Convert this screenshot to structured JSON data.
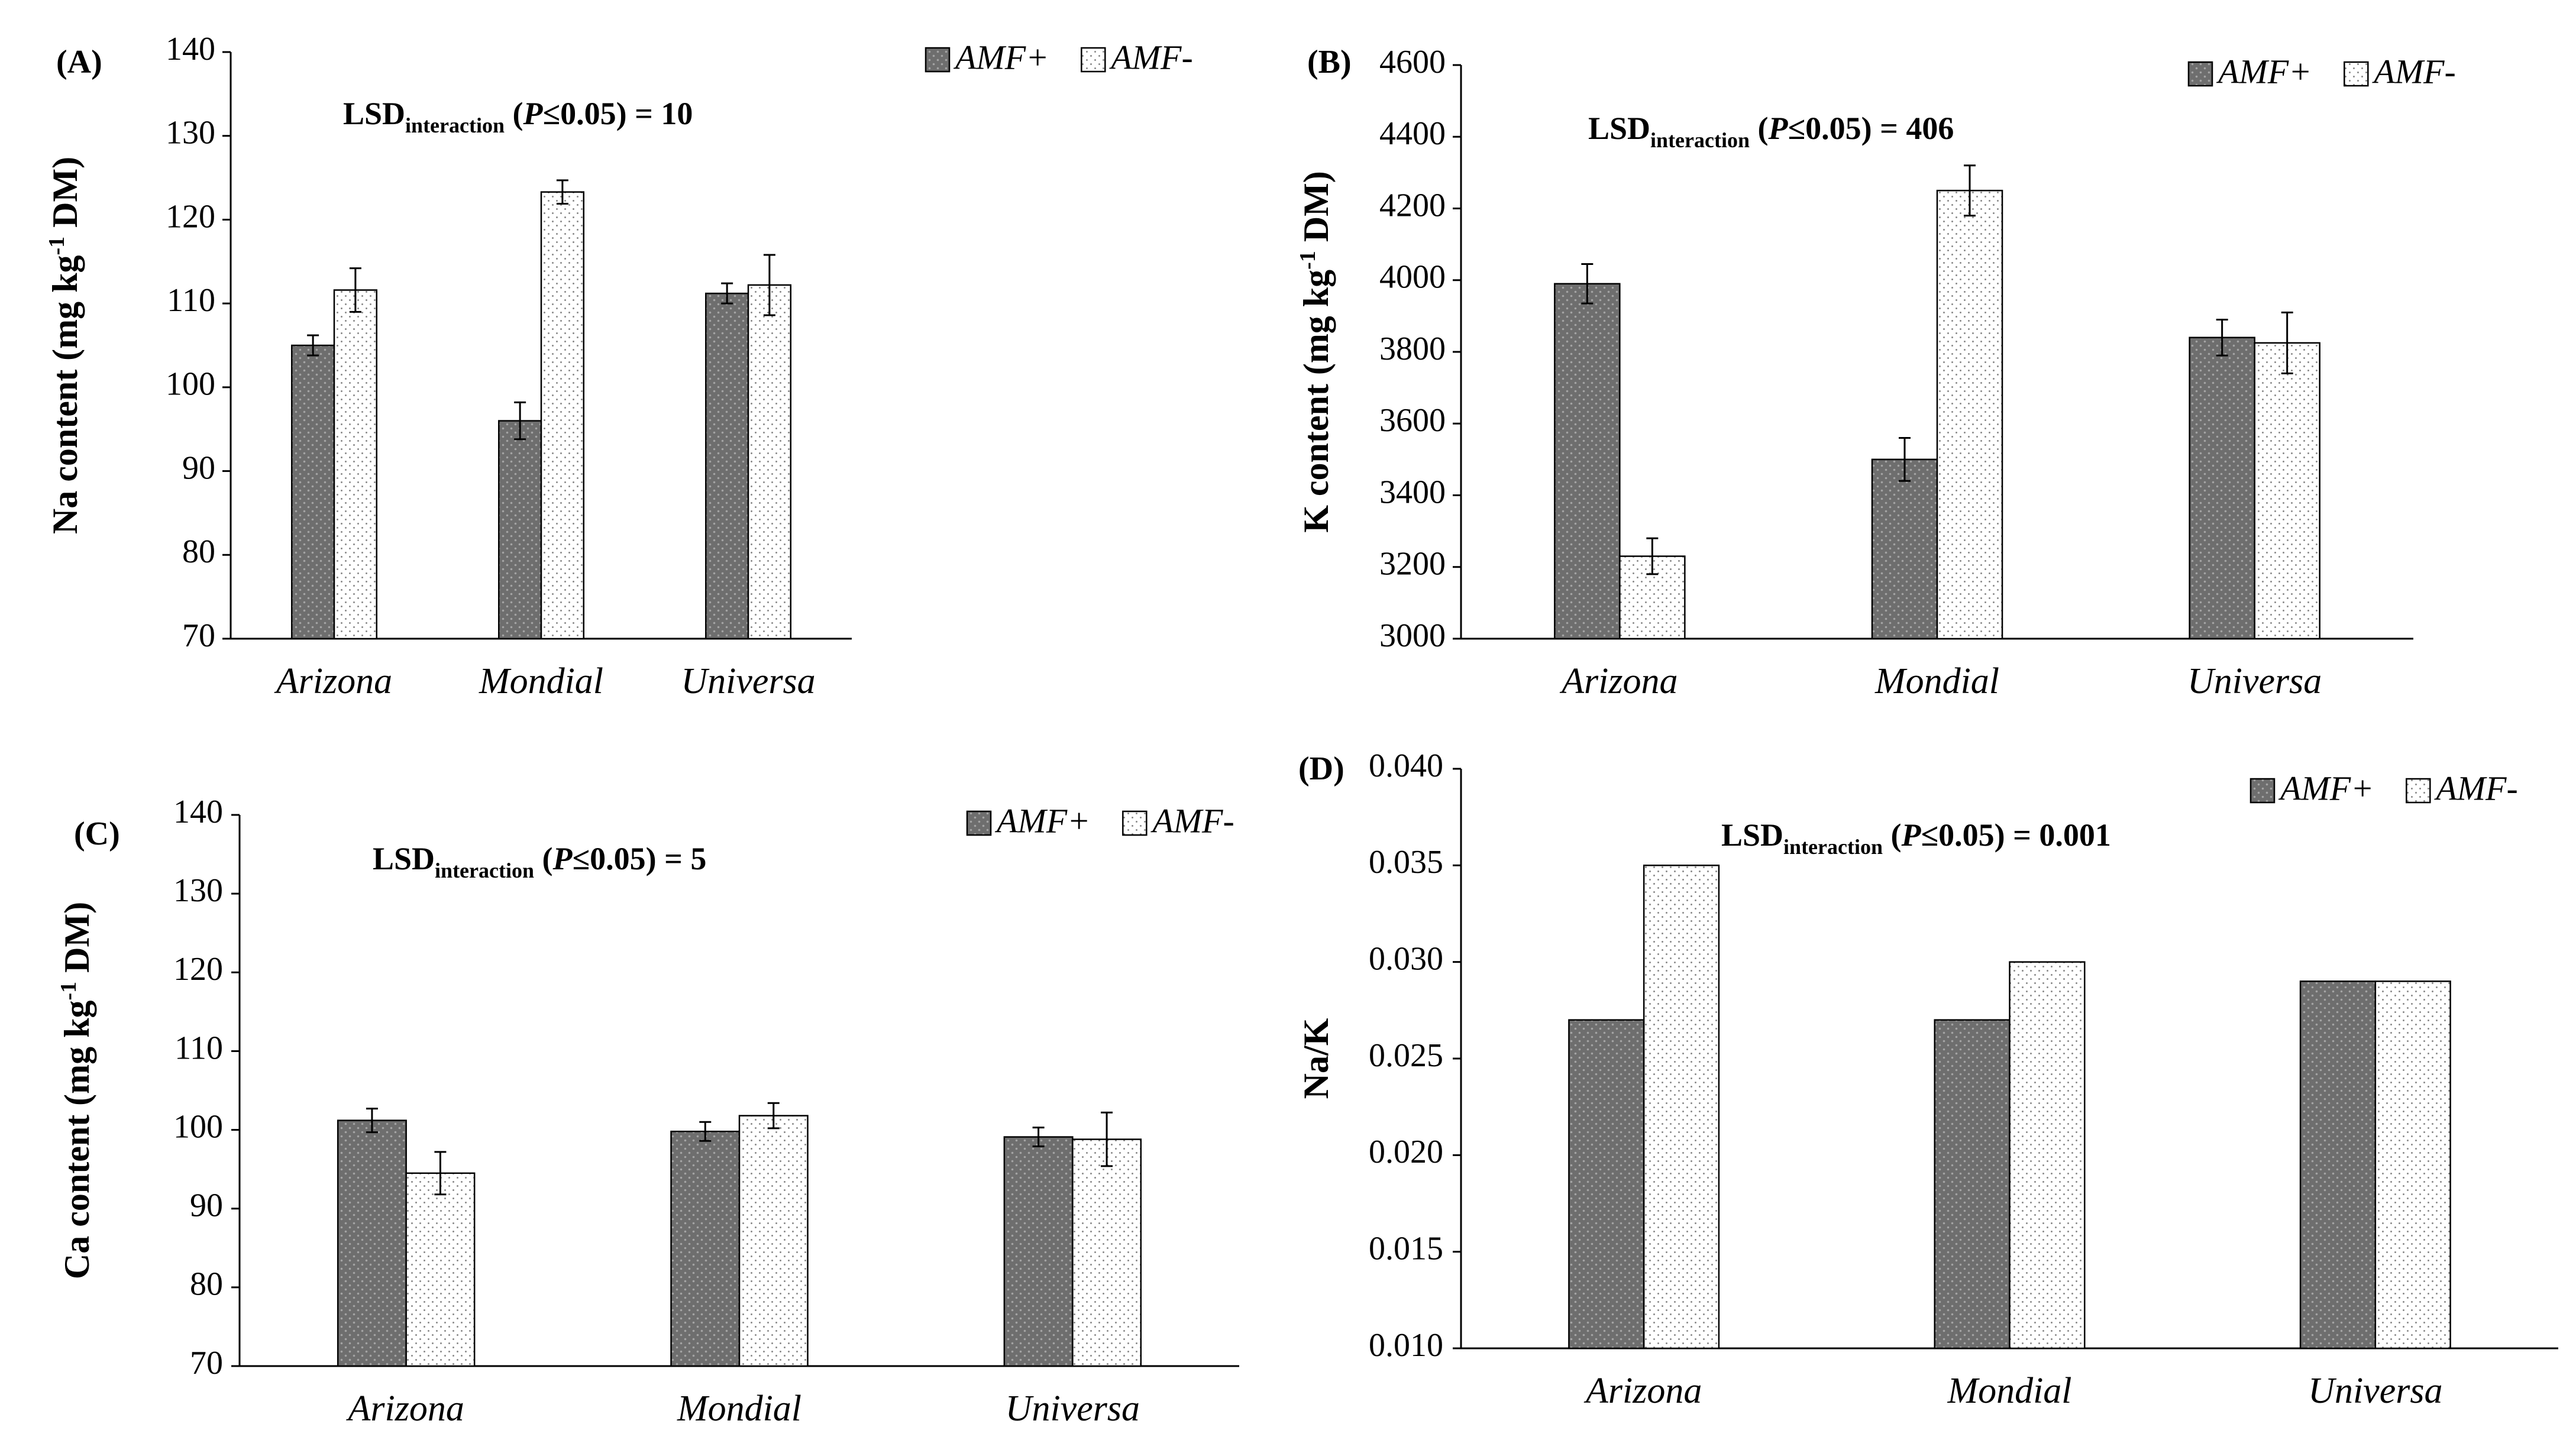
{
  "colors": {
    "amf_plus": "#6e6e6e",
    "amf_minus": "#ffffff",
    "axis": "#000000"
  },
  "chart_data": [
    {
      "type": "bar",
      "panel_label": "(A)",
      "categories": [
        "Arizona",
        "Mondial",
        "Universa"
      ],
      "ylabel_parts": [
        "Na content (mg kg",
        "-1",
        " DM)"
      ],
      "ylim": [
        70,
        140
      ],
      "yticks": [
        "70",
        "80",
        "90",
        "100",
        "110",
        "120",
        "130",
        "140"
      ],
      "series": [
        {
          "name": "AMF+",
          "values": [
            105.0,
            96.0,
            111.2
          ],
          "errors": [
            1.2,
            2.2,
            1.2
          ]
        },
        {
          "name": "AMF-",
          "values": [
            111.6,
            123.3,
            112.2
          ],
          "errors": [
            2.6,
            1.4,
            3.6
          ]
        }
      ],
      "lsd": {
        "main": "LSD",
        "sub": "interaction",
        "open": " (",
        "p": "P",
        "le": "≤0.05)",
        "value": " = 10"
      },
      "legend_position": "top-right"
    },
    {
      "type": "bar",
      "panel_label": "(B)",
      "categories": [
        "Arizona",
        "Mondial",
        "Universa"
      ],
      "ylabel_parts": [
        "K content (mg kg",
        "-1",
        " DM)"
      ],
      "ylim": [
        3000,
        4600
      ],
      "yticks": [
        "3000",
        "3200",
        "3400",
        "3600",
        "3800",
        "4000",
        "4200",
        "4400",
        "4600"
      ],
      "series": [
        {
          "name": "AMF+",
          "values": [
            3990,
            3500,
            3840
          ],
          "errors": [
            55,
            60,
            50
          ]
        },
        {
          "name": "AMF-",
          "values": [
            3230,
            4250,
            3825
          ],
          "errors": [
            50,
            70,
            85
          ]
        }
      ],
      "lsd": {
        "main": "LSD",
        "sub": "interaction",
        "open": " (",
        "p": "P",
        "le": "≤0.05)",
        "value": " = 406"
      },
      "legend_position": "top-right"
    },
    {
      "type": "bar",
      "panel_label": "(C)",
      "categories": [
        "Arizona",
        "Mondial",
        "Universa"
      ],
      "ylabel_parts": [
        "Ca content  (mg kg",
        "-1",
        " DM)"
      ],
      "ylim": [
        70,
        140
      ],
      "yticks": [
        "70",
        "80",
        "90",
        "100",
        "110",
        "120",
        "130",
        "140"
      ],
      "series": [
        {
          "name": "AMF+",
          "values": [
            101.2,
            99.8,
            99.1
          ],
          "errors": [
            1.5,
            1.2,
            1.2
          ]
        },
        {
          "name": "AMF-",
          "values": [
            94.5,
            101.8,
            98.8
          ],
          "errors": [
            2.7,
            1.6,
            3.4
          ]
        }
      ],
      "lsd": {
        "main": "LSD",
        "sub": "interaction",
        "open": " (",
        "p": "P",
        "le": "≤0.05)",
        "value": " = 5"
      },
      "legend_position": "top-right"
    },
    {
      "type": "bar",
      "panel_label": "(D)",
      "categories": [
        "Arizona",
        "Mondial",
        "Universa"
      ],
      "ylabel_parts": [
        "Na/K",
        "",
        ""
      ],
      "ylim": [
        0.01,
        0.04
      ],
      "yticks": [
        "0.010",
        "0.015",
        "0.020",
        "0.025",
        "0.030",
        "0.035",
        "0.040"
      ],
      "series": [
        {
          "name": "AMF+",
          "values": [
            0.027,
            0.027,
            0.029
          ],
          "errors": [
            0,
            0,
            0
          ]
        },
        {
          "name": "AMF-",
          "values": [
            0.035,
            0.03,
            0.029
          ],
          "errors": [
            0,
            0,
            0
          ]
        }
      ],
      "lsd": {
        "main": "LSD",
        "sub": "interaction",
        "open": " (",
        "p": "P",
        "le": "≤0.05)",
        "value": " = 0.001"
      },
      "legend_position": "top-right"
    }
  ]
}
